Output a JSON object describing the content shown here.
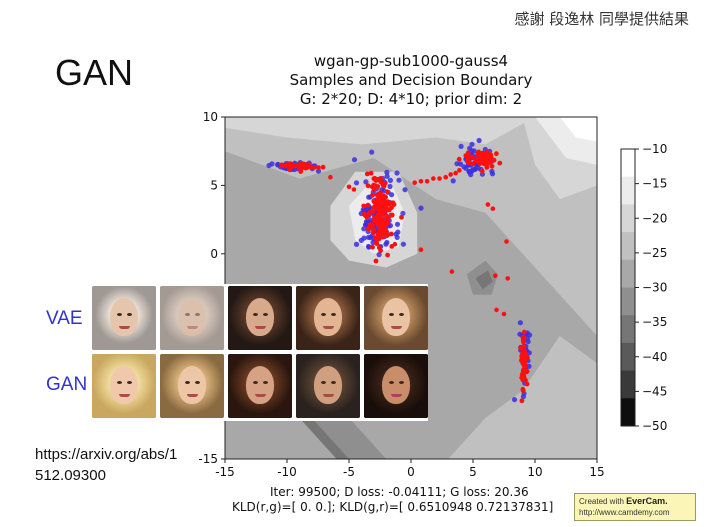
{
  "slide": {
    "credit": "感謝 段逸林 同學提供結果",
    "title": "GAN",
    "link": "https://arxiv.org/abs/1512.09300"
  },
  "plot": {
    "title_line1": "wgan-gp-sub1000-gauss4",
    "title_line2": "Samples and Decision Boundary",
    "title_line3": "G: 2*20; D: 4*10; prior dim: 2",
    "footer_line1": "Iter: 99500; D loss: -0.04111; G loss: 20.36",
    "footer_line2": "KLD(r,g)=[ 0.  0.]; KLD(g,r)=[ 0.6510948   0.72137831]"
  },
  "faces": {
    "vae_label": "VAE",
    "gan_label": "GAN"
  },
  "watermark": {
    "line1_prefix": "Created with ",
    "brand": "EverCam.",
    "line2": "http://www.camdemy.com"
  },
  "colors": {
    "real_samples": "#3b2fe0",
    "generated_samples": "#ff1010",
    "label_blue": "#3333cc"
  },
  "chart_data": {
    "type": "scatter",
    "xlim": [
      -15,
      15
    ],
    "ylim": [
      -15,
      10
    ],
    "x_ticks": [
      -15,
      -10,
      -5,
      0,
      5,
      10,
      15
    ],
    "y_ticks": [
      -15,
      -10,
      -5,
      0,
      5,
      10
    ],
    "colorbar": {
      "ticks": [
        -10,
        -15,
        -20,
        -25,
        -30,
        -35,
        -40,
        -45,
        -50
      ],
      "levels": [
        "#ffffff",
        "#ececec",
        "#d6d6d6",
        "#c0c0c0",
        "#a8a8a8",
        "#8f8f8f",
        "#767676",
        "#5a5a5a",
        "#3a3a3a",
        "#0e0e0e"
      ]
    },
    "clusters": [
      {
        "series": "real",
        "center": [
          -2.7,
          2.8
        ],
        "spread": [
          0.9,
          1.4
        ],
        "count": 140
      },
      {
        "series": "real",
        "center": [
          -9.2,
          6.4
        ],
        "spread": [
          1.0,
          0.15
        ],
        "count": 40
      },
      {
        "series": "real",
        "center": [
          5.3,
          6.9
        ],
        "spread": [
          0.7,
          0.45
        ],
        "count": 60
      },
      {
        "series": "real",
        "center": [
          9.2,
          -7.5
        ],
        "spread": [
          0.2,
          1.3
        ],
        "count": 40
      },
      {
        "series": "generated",
        "center": [
          -2.5,
          2.9
        ],
        "spread": [
          0.55,
          1.3
        ],
        "count": 150
      },
      {
        "series": "generated",
        "center": [
          -8.9,
          6.4
        ],
        "spread": [
          0.9,
          0.12
        ],
        "count": 40
      },
      {
        "series": "generated",
        "center": [
          5.6,
          6.9
        ],
        "spread": [
          0.7,
          0.35
        ],
        "count": 60
      },
      {
        "series": "generated",
        "center": [
          9.1,
          -7.6
        ],
        "spread": [
          0.12,
          1.2
        ],
        "count": 50
      }
    ],
    "generated_stragglers": [
      [
        -6.5,
        5.6
      ],
      [
        -5.0,
        4.9
      ],
      [
        -4.6,
        4.7
      ],
      [
        0.3,
        5.2
      ],
      [
        0.8,
        5.3
      ],
      [
        1.3,
        5.3
      ],
      [
        1.8,
        5.5
      ],
      [
        2.3,
        5.5
      ],
      [
        2.8,
        5.6
      ],
      [
        3.2,
        5.8
      ],
      [
        3.6,
        5.9
      ],
      [
        3.9,
        6.1
      ],
      [
        6.2,
        3.6
      ],
      [
        6.6,
        3.3
      ],
      [
        7.7,
        0.9
      ],
      [
        6.8,
        -1.6
      ],
      [
        7.8,
        -1.8
      ],
      [
        7.5,
        -4.4
      ],
      [
        6.9,
        -4.1
      ],
      [
        3.3,
        -1.3
      ],
      [
        0.8,
        0.3
      ],
      [
        -1.3,
        0.7
      ]
    ]
  }
}
